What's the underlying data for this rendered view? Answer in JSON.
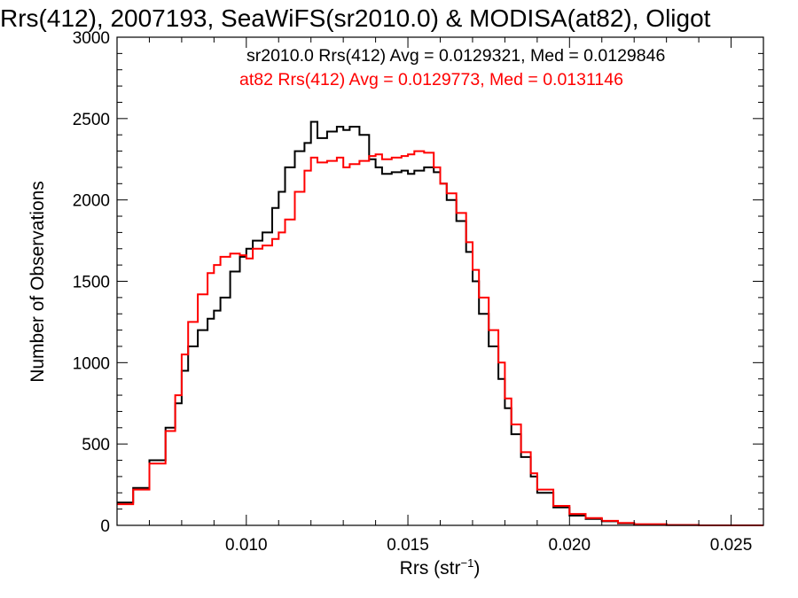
{
  "chart_data": {
    "type": "line",
    "title": "Rrs(412), 2007193, SeaWiFS(sr2010.0) & MODISA(at82), Oligot",
    "xlabel_main": "Rrs (str",
    "xlabel_sup": "−1",
    "xlabel_end": ")",
    "ylabel": "Number of Observations",
    "xlim": [
      0.006,
      0.026
    ],
    "ylim": [
      0,
      3000
    ],
    "xticks": [
      0.01,
      0.015,
      0.02,
      0.025
    ],
    "xtick_labels": [
      "0.010",
      "0.015",
      "0.020",
      "0.025"
    ],
    "yticks": [
      0,
      500,
      1000,
      1500,
      2000,
      2500,
      3000
    ],
    "ytick_labels": [
      "0",
      "500",
      "1000",
      "1500",
      "2000",
      "2500",
      "3000"
    ],
    "grid": false,
    "legend_position": "top-right",
    "series": [
      {
        "name": "sr2010.0",
        "label": "sr2010.0 Rrs(412) Avg = 0.0129321, Med = 0.0129846",
        "color": "#000000",
        "x": [
          0.006,
          0.0065,
          0.007,
          0.0075,
          0.0078,
          0.008,
          0.0082,
          0.0085,
          0.0088,
          0.009,
          0.0092,
          0.0095,
          0.0098,
          0.01,
          0.0102,
          0.0105,
          0.0108,
          0.011,
          0.0112,
          0.0115,
          0.0118,
          0.012,
          0.0122,
          0.0125,
          0.0128,
          0.013,
          0.0132,
          0.0135,
          0.0138,
          0.014,
          0.0142,
          0.0145,
          0.0148,
          0.015,
          0.0152,
          0.0155,
          0.0158,
          0.016,
          0.0162,
          0.0165,
          0.0168,
          0.017,
          0.0172,
          0.0175,
          0.0178,
          0.018,
          0.0182,
          0.0185,
          0.0188,
          0.019,
          0.0195,
          0.02,
          0.0205,
          0.021,
          0.0215,
          0.022,
          0.023,
          0.024,
          0.026
        ],
        "y": [
          140,
          230,
          400,
          600,
          750,
          950,
          1100,
          1200,
          1270,
          1320,
          1400,
          1560,
          1650,
          1700,
          1750,
          1800,
          1950,
          2050,
          2200,
          2300,
          2350,
          2480,
          2380,
          2420,
          2450,
          2430,
          2450,
          2400,
          2250,
          2200,
          2160,
          2170,
          2180,
          2160,
          2180,
          2200,
          2170,
          2100,
          2000,
          1870,
          1680,
          1500,
          1300,
          1100,
          900,
          720,
          560,
          420,
          300,
          200,
          110,
          60,
          40,
          25,
          12,
          6,
          2,
          0,
          0
        ]
      },
      {
        "name": "at82",
        "label": "at82 Rrs(412) Avg = 0.0129773, Med = 0.0131146",
        "color": "#ff0000",
        "x": [
          0.006,
          0.0065,
          0.007,
          0.0075,
          0.0078,
          0.008,
          0.0082,
          0.0085,
          0.0088,
          0.009,
          0.0092,
          0.0095,
          0.0098,
          0.01,
          0.0102,
          0.0105,
          0.0108,
          0.011,
          0.0112,
          0.0115,
          0.0118,
          0.012,
          0.0122,
          0.0125,
          0.0128,
          0.013,
          0.0132,
          0.0135,
          0.0138,
          0.014,
          0.0142,
          0.0145,
          0.0148,
          0.015,
          0.0152,
          0.0155,
          0.0158,
          0.016,
          0.0162,
          0.0165,
          0.0168,
          0.017,
          0.0172,
          0.0175,
          0.0178,
          0.018,
          0.0182,
          0.0185,
          0.0188,
          0.019,
          0.0195,
          0.02,
          0.0205,
          0.021,
          0.0215,
          0.022,
          0.023,
          0.024,
          0.026
        ],
        "y": [
          130,
          220,
          380,
          580,
          800,
          1050,
          1250,
          1420,
          1550,
          1600,
          1650,
          1670,
          1660,
          1640,
          1700,
          1720,
          1760,
          1800,
          1880,
          2050,
          2180,
          2260,
          2230,
          2240,
          2260,
          2200,
          2220,
          2240,
          2270,
          2280,
          2250,
          2260,
          2270,
          2280,
          2300,
          2290,
          2200,
          2100,
          2040,
          1920,
          1740,
          1570,
          1400,
          1200,
          1000,
          780,
          620,
          450,
          320,
          220,
          120,
          70,
          45,
          28,
          15,
          7,
          2,
          0,
          0
        ]
      }
    ]
  }
}
